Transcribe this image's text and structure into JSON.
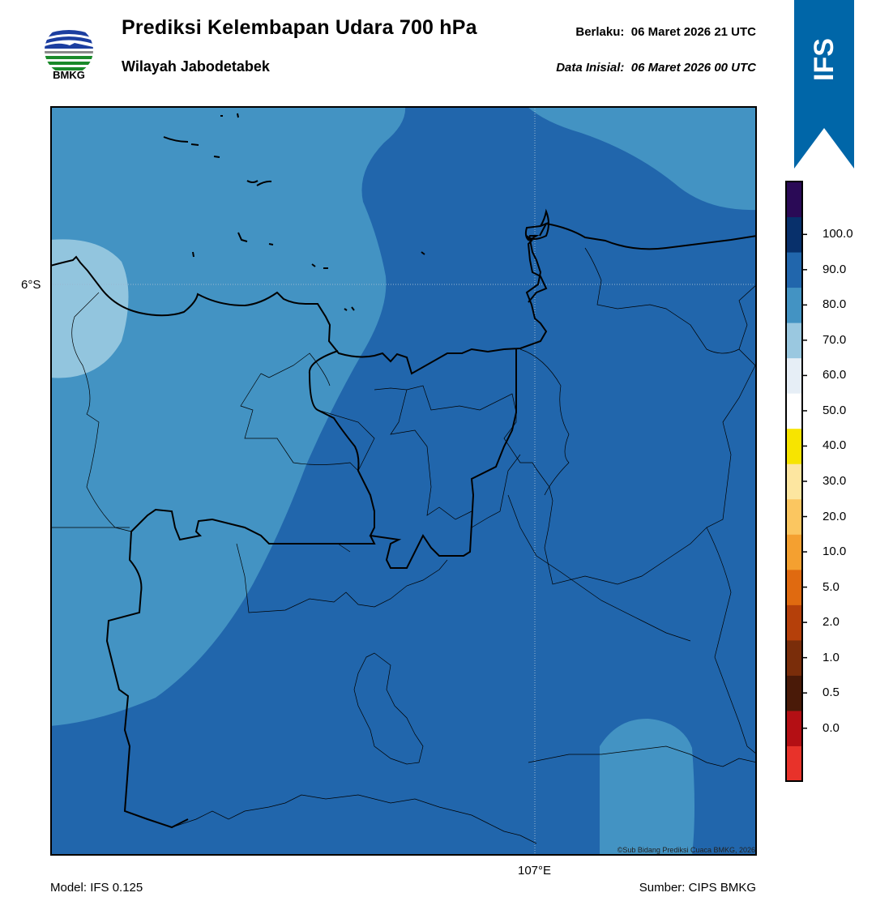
{
  "header": {
    "logo_text": "BMKG",
    "title": "Prediksi Kelembapan Udara 700 hPa",
    "subtitle": "Wilayah Jabodetabek",
    "valid_label": "Berlaku:",
    "valid_time": "06 Maret 2026 21 UTC",
    "init_label": "Data Inisial:",
    "init_time": "06 Maret 2026 00 UTC"
  },
  "badge": {
    "text": "IFS",
    "color": "#0066a8"
  },
  "map": {
    "lat_label": "6°S",
    "lon_label": "107°E",
    "credit": "©Sub Bidang Prediksi Cuaca BMKG, 2026"
  },
  "colorbar": {
    "labels": [
      "100.0",
      "90.0",
      "80.0",
      "70.0",
      "60.0",
      "50.0",
      "40.0",
      "30.0",
      "20.0",
      "10.0",
      "5.0",
      "2.0",
      "1.0",
      "0.5",
      "0.0"
    ],
    "colors": [
      "#e8322a",
      "#b40f14",
      "#4a1a08",
      "#7a2d0a",
      "#b5400a",
      "#e06a10",
      "#f4a030",
      "#fbc660",
      "#fde6a0",
      "#f7e400",
      "#ffffff",
      "#e6eef6",
      "#9ac8e0",
      "#4393c3",
      "#2166ac",
      "#08306b",
      "#2a0a56"
    ]
  },
  "footer": {
    "model": "Model: IFS 0.125",
    "source": "Sumber: CIPS BMKG"
  }
}
